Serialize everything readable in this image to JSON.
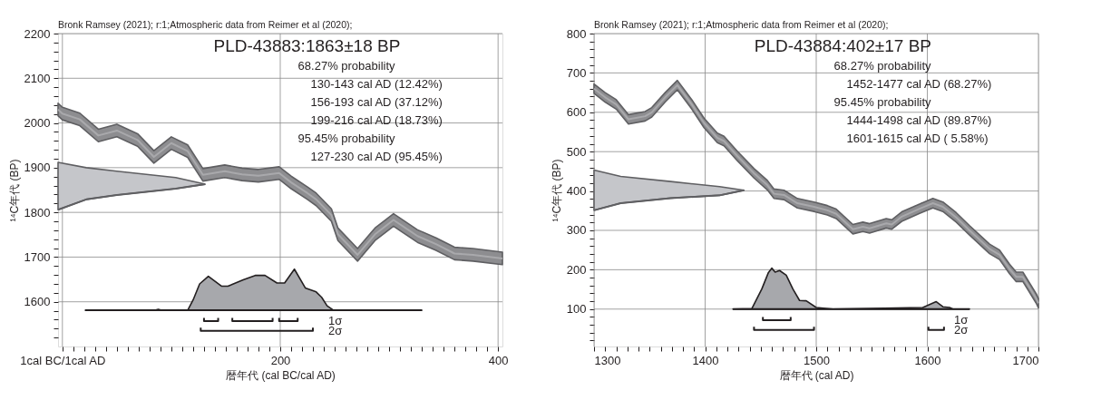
{
  "chart_data": [
    {
      "type": "line",
      "title": "PLD-43883:1863±18 BP",
      "xlabel": "暦年代 (cal BC/cal AD)",
      "ylabel": "¹⁴C年代 (BP)",
      "annotations": [
        "Bronk Ramsey (2021); r:1;Atmospheric data from Reimer et al (2020);",
        "68.27% probability",
        "130-143 cal AD (12.42%)",
        "156-193 cal AD (37.12%)",
        "199-216 cal AD (18.73%)",
        "95.45% probability",
        "127-230 cal AD (95.45%)",
        "1σ",
        "2σ"
      ],
      "xlim": [
        -4,
        404
      ],
      "ylim": [
        1500,
        2200
      ],
      "grid": true,
      "marker": "none",
      "line_style": "solid",
      "xticks": [
        {
          "value": 0,
          "label": "1cal BC/1cal AD"
        },
        {
          "value": 10,
          "label": null
        },
        {
          "value": 20,
          "label": null
        },
        {
          "value": 30,
          "label": null
        },
        {
          "value": 40,
          "label": null
        },
        {
          "value": 50,
          "label": null
        },
        {
          "value": 60,
          "label": null
        },
        {
          "value": 70,
          "label": null
        },
        {
          "value": 80,
          "label": null
        },
        {
          "value": 90,
          "label": null
        },
        {
          "value": 100,
          "label": null
        },
        {
          "value": 110,
          "label": null
        },
        {
          "value": 120,
          "label": null
        },
        {
          "value": 130,
          "label": null
        },
        {
          "value": 140,
          "label": null
        },
        {
          "value": 150,
          "label": null
        },
        {
          "value": 160,
          "label": null
        },
        {
          "value": 170,
          "label": null
        },
        {
          "value": 180,
          "label": null
        },
        {
          "value": 190,
          "label": null
        },
        200,
        {
          "value": 210,
          "label": null
        },
        {
          "value": 220,
          "label": null
        },
        {
          "value": 230,
          "label": null
        },
        {
          "value": 240,
          "label": null
        },
        {
          "value": 250,
          "label": null
        },
        {
          "value": 260,
          "label": null
        },
        {
          "value": 270,
          "label": null
        },
        {
          "value": 280,
          "label": null
        },
        {
          "value": 290,
          "label": null
        },
        {
          "value": 300,
          "label": null
        },
        {
          "value": 310,
          "label": null
        },
        {
          "value": 320,
          "label": null
        },
        {
          "value": 330,
          "label": null
        },
        {
          "value": 340,
          "label": null
        },
        {
          "value": 350,
          "label": null
        },
        {
          "value": 360,
          "label": null
        },
        {
          "value": 370,
          "label": null
        },
        {
          "value": 380,
          "label": null
        },
        {
          "value": 390,
          "label": null
        },
        400
      ],
      "yticks": [
        {
          "value": 1520,
          "label": null
        },
        {
          "value": 1540,
          "label": null
        },
        {
          "value": 1560,
          "label": null
        },
        {
          "value": 1580,
          "label": null
        },
        1600,
        {
          "value": 1620,
          "label": null
        },
        {
          "value": 1640,
          "label": null
        },
        {
          "value": 1660,
          "label": null
        },
        {
          "value": 1680,
          "label": null
        },
        1700,
        {
          "value": 1720,
          "label": null
        },
        {
          "value": 1740,
          "label": null
        },
        {
          "value": 1760,
          "label": null
        },
        {
          "value": 1780,
          "label": null
        },
        1800,
        {
          "value": 1820,
          "label": null
        },
        {
          "value": 1840,
          "label": null
        },
        {
          "value": 1860,
          "label": null
        },
        {
          "value": 1880,
          "label": null
        },
        1900,
        {
          "value": 1920,
          "label": null
        },
        {
          "value": 1940,
          "label": null
        },
        {
          "value": 1960,
          "label": null
        },
        {
          "value": 1980,
          "label": null
        },
        2000,
        {
          "value": 2020,
          "label": null
        },
        {
          "value": 2040,
          "label": null
        },
        {
          "value": 2060,
          "label": null
        },
        {
          "value": 2080,
          "label": null
        },
        2100,
        {
          "value": 2120,
          "label": null
        },
        {
          "value": 2140,
          "label": null
        },
        {
          "value": 2160,
          "label": null
        },
        {
          "value": 2180,
          "label": null
        },
        2200
      ],
      "series": [
        {
          "color": "#a9a9ac",
          "x": [
            -4,
            0,
            16,
            33,
            50,
            69,
            84,
            100,
            115,
            129,
            149,
            165,
            180,
            199,
            210,
            225,
            233,
            247,
            253,
            271,
            287,
            304,
            326,
            343,
            360,
            377,
            404
          ],
          "values": [
            2030,
            2021,
            2008,
            1972,
            1983,
            1962,
            1924,
            1955,
            1937,
            1884,
            1892,
            1885,
            1882,
            1888,
            1867,
            1843,
            1829,
            1794,
            1751,
            1705,
            1751,
            1783,
            1747,
            1729,
            1708,
            1705,
            1697
          ],
          "lower": [
            2016,
            2007,
            1994,
            1958,
            1969,
            1948,
            1910,
            1941,
            1923,
            1870,
            1878,
            1871,
            1868,
            1874,
            1853,
            1829,
            1815,
            1780,
            1737,
            1691,
            1737,
            1769,
            1733,
            1715,
            1694,
            1691,
            1683
          ],
          "upper": [
            2044,
            2035,
            2022,
            1986,
            1997,
            1976,
            1938,
            1969,
            1951,
            1898,
            1906,
            1899,
            1896,
            1902,
            1881,
            1857,
            1843,
            1808,
            1765,
            1719,
            1765,
            1797,
            1761,
            1743,
            1722,
            1719,
            1711
          ]
        },
        {
          "color": "#5f5f62",
          "x": [
            -4,
            22,
            50,
            104,
            131
          ],
          "values": [
            1806,
            1829,
            1839,
            1853,
            1863
          ],
          "lower": [
            1806,
            1829,
            1839,
            1853,
            1863
          ],
          "upper": [
            1912,
            1900,
            1892,
            1878,
            1863
          ]
        },
        {
          "color": "#231f20",
          "x": [
            21,
            85,
            88,
            91,
            115,
            120,
            126,
            134,
            146,
            152,
            166,
            177,
            186,
            197,
            204,
            213,
            223,
            233,
            238,
            243,
            249,
            330
          ],
          "values": [
            1581,
            1581,
            1581,
            1581,
            1581,
            1581,
            1581,
            1581,
            1581,
            1581,
            1581,
            1581,
            1581,
            1581,
            1581,
            1581,
            1581,
            1581,
            1581,
            1581,
            1581,
            1581
          ],
          "lower": [
            1581,
            1581,
            1581,
            1581,
            1581,
            1581,
            1581,
            1581,
            1581,
            1581,
            1581,
            1581,
            1581,
            1581,
            1581,
            1581,
            1581,
            1581,
            1581,
            1581,
            1581,
            1581
          ],
          "upper": [
            1581,
            1581,
            1583,
            1581,
            1581,
            1604,
            1640,
            1657,
            1635,
            1635,
            1649,
            1659,
            1659,
            1642,
            1642,
            1673,
            1631,
            1622,
            1610,
            1591,
            1581,
            1581
          ]
        },
        {
          "color": "#231f20",
          "x": [
            130,
            130,
            143,
            143
          ],
          "values": [
            1564,
            1557,
            1557,
            1564
          ]
        },
        {
          "color": "#231f20",
          "x": [
            156,
            156,
            193,
            193
          ],
          "values": [
            1564,
            1557,
            1557,
            1564
          ]
        },
        {
          "color": "#231f20",
          "x": [
            199,
            199,
            216,
            216
          ],
          "values": [
            1564,
            1557,
            1557,
            1564
          ]
        },
        {
          "color": "#231f20",
          "x": [
            127,
            127,
            230,
            230
          ],
          "values": [
            1542,
            1535,
            1535,
            1542
          ]
        }
      ]
    },
    {
      "type": "line",
      "title": "PLD-43884:402±17 BP",
      "xlabel": "暦年代 (cal AD)",
      "ylabel": "¹⁴C年代 (BP)",
      "annotations": [
        "Bronk Ramsey (2021); r:1;Atmospheric data from Reimer et al (2020);",
        "68.27% probability",
        "1452-1477 cal AD (68.27%)",
        "95.45% probability",
        "1444-1498 cal AD (89.87%)",
        "1601-1615 cal AD ( 5.58%)",
        "1σ",
        "2σ"
      ],
      "xlim": [
        1300,
        1700
      ],
      "ylim": [
        5,
        800
      ],
      "grid": true,
      "marker": "none",
      "line_style": "solid",
      "xticks": [
        1300,
        {
          "value": 1310,
          "label": null
        },
        {
          "value": 1320,
          "label": null
        },
        {
          "value": 1330,
          "label": null
        },
        {
          "value": 1340,
          "label": null
        },
        {
          "value": 1350,
          "label": null
        },
        {
          "value": 1360,
          "label": null
        },
        {
          "value": 1370,
          "label": null
        },
        {
          "value": 1380,
          "label": null
        },
        {
          "value": 1390,
          "label": null
        },
        1400,
        {
          "value": 1410,
          "label": null
        },
        {
          "value": 1420,
          "label": null
        },
        {
          "value": 1430,
          "label": null
        },
        {
          "value": 1440,
          "label": null
        },
        {
          "value": 1450,
          "label": null
        },
        {
          "value": 1460,
          "label": null
        },
        {
          "value": 1470,
          "label": null
        },
        {
          "value": 1480,
          "label": null
        },
        {
          "value": 1490,
          "label": null
        },
        1500,
        {
          "value": 1510,
          "label": null
        },
        {
          "value": 1520,
          "label": null
        },
        {
          "value": 1530,
          "label": null
        },
        {
          "value": 1540,
          "label": null
        },
        {
          "value": 1550,
          "label": null
        },
        {
          "value": 1560,
          "label": null
        },
        {
          "value": 1570,
          "label": null
        },
        {
          "value": 1580,
          "label": null
        },
        {
          "value": 1590,
          "label": null
        },
        1600,
        {
          "value": 1610,
          "label": null
        },
        {
          "value": 1620,
          "label": null
        },
        {
          "value": 1630,
          "label": null
        },
        {
          "value": 1640,
          "label": null
        },
        {
          "value": 1650,
          "label": null
        },
        {
          "value": 1660,
          "label": null
        },
        {
          "value": 1670,
          "label": null
        },
        {
          "value": 1680,
          "label": null
        },
        {
          "value": 1690,
          "label": null
        },
        1700
      ],
      "yticks": [
        {
          "value": 20,
          "label": null
        },
        {
          "value": 40,
          "label": null
        },
        {
          "value": 60,
          "label": null
        },
        {
          "value": 80,
          "label": null
        },
        100,
        {
          "value": 120,
          "label": null
        },
        {
          "value": 140,
          "label": null
        },
        {
          "value": 160,
          "label": null
        },
        {
          "value": 180,
          "label": null
        },
        200,
        {
          "value": 220,
          "label": null
        },
        {
          "value": 240,
          "label": null
        },
        {
          "value": 260,
          "label": null
        },
        {
          "value": 280,
          "label": null
        },
        300,
        {
          "value": 320,
          "label": null
        },
        {
          "value": 340,
          "label": null
        },
        {
          "value": 360,
          "label": null
        },
        {
          "value": 380,
          "label": null
        },
        400,
        {
          "value": 420,
          "label": null
        },
        {
          "value": 440,
          "label": null
        },
        {
          "value": 460,
          "label": null
        },
        {
          "value": 480,
          "label": null
        },
        500,
        {
          "value": 520,
          "label": null
        },
        {
          "value": 540,
          "label": null
        },
        {
          "value": 560,
          "label": null
        },
        {
          "value": 580,
          "label": null
        },
        600,
        {
          "value": 620,
          "label": null
        },
        {
          "value": 640,
          "label": null
        },
        {
          "value": 660,
          "label": null
        },
        {
          "value": 680,
          "label": null
        },
        700,
        {
          "value": 720,
          "label": null
        },
        {
          "value": 740,
          "label": null
        },
        {
          "value": 760,
          "label": null
        },
        {
          "value": 780,
          "label": null
        },
        800
      ],
      "series": [
        {
          "color": "#a9a9ac",
          "x": [
            1300,
            1310,
            1320,
            1331,
            1346,
            1352,
            1364,
            1375,
            1388,
            1399,
            1411,
            1417,
            1429,
            1444,
            1456,
            1462,
            1471,
            1483,
            1498,
            1510,
            1518,
            1533,
            1542,
            1548,
            1563,
            1568,
            1577,
            1593,
            1605,
            1614,
            1626,
            1638,
            1656,
            1665,
            1674,
            1680,
            1686,
            1698,
            1700
          ],
          "values": [
            660,
            638,
            620,
            582,
            590,
            600,
            638,
            669,
            620,
            573,
            535,
            527,
            489,
            445,
            415,
            393,
            390,
            369,
            360,
            351,
            342,
            303,
            309,
            305,
            318,
            315,
            335,
            355,
            369,
            360,
            333,
            300,
            253,
            238,
            202,
            182,
            182,
            127,
            115
          ],
          "lower": [
            648,
            626,
            608,
            570,
            578,
            588,
            626,
            657,
            608,
            561,
            523,
            515,
            477,
            433,
            403,
            381,
            378,
            357,
            348,
            339,
            330,
            291,
            297,
            293,
            306,
            303,
            323,
            343,
            357,
            348,
            321,
            288,
            241,
            226,
            190,
            170,
            170,
            115,
            103
          ],
          "upper": [
            672,
            650,
            632,
            594,
            602,
            612,
            650,
            681,
            632,
            585,
            547,
            539,
            501,
            457,
            427,
            405,
            402,
            381,
            372,
            363,
            354,
            315,
            321,
            317,
            330,
            327,
            347,
            367,
            381,
            372,
            345,
            312,
            265,
            250,
            214,
            194,
            194,
            139,
            127
          ]
        },
        {
          "color": "#5f5f62",
          "x": [
            1300,
            1324,
            1369,
            1413,
            1435
          ],
          "values": [
            351,
            369,
            382,
            389,
            402
          ],
          "lower": [
            351,
            369,
            382,
            389,
            402
          ],
          "upper": [
            453,
            437,
            424,
            411,
            402
          ]
        },
        {
          "color": "#231f20",
          "x": [
            1425,
            1442,
            1451,
            1457,
            1460,
            1463,
            1467,
            1473,
            1479,
            1485,
            1491,
            1500,
            1515,
            1596,
            1608,
            1614,
            1620,
            1623,
            1638
          ],
          "values": [
            100,
            100,
            100,
            100,
            100,
            100,
            100,
            100,
            100,
            100,
            100,
            100,
            100,
            100,
            100,
            100,
            100,
            100,
            100
          ],
          "lower": [
            100,
            100,
            100,
            100,
            100,
            100,
            100,
            100,
            100,
            100,
            100,
            100,
            100,
            100,
            100,
            100,
            100,
            100,
            100
          ],
          "upper": [
            100,
            101,
            151,
            193,
            204,
            194,
            198,
            186,
            151,
            122,
            121,
            104,
            100,
            104,
            119,
            106,
            104,
            100,
            100
          ]
        },
        {
          "color": "#231f20",
          "x": [
            1452,
            1452,
            1477,
            1477
          ],
          "values": [
            80,
            72,
            72,
            80
          ]
        },
        {
          "color": "#231f20",
          "x": [
            1444,
            1444,
            1498,
            1498
          ],
          "values": [
            55,
            47,
            47,
            55
          ]
        },
        {
          "color": "#231f20",
          "x": [
            1601,
            1601,
            1615,
            1615
          ],
          "values": [
            55,
            47,
            47,
            55
          ]
        }
      ]
    }
  ]
}
